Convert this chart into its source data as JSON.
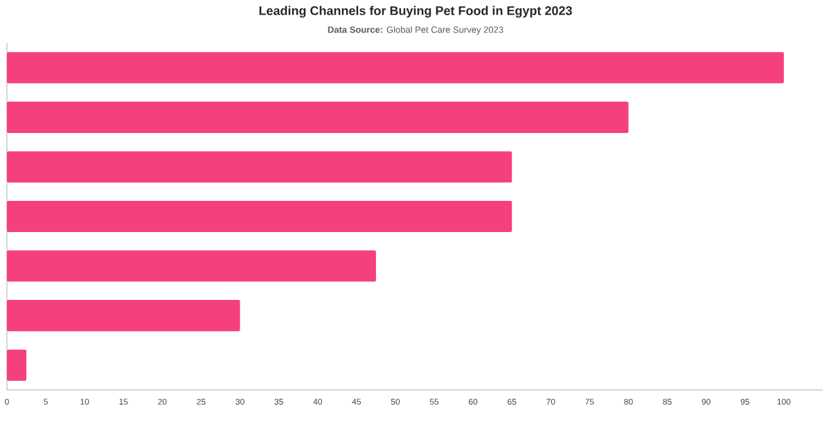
{
  "chart_data": {
    "type": "bar",
    "orientation": "horizontal",
    "title": "Leading Channels for Buying Pet Food in Egypt 2023",
    "subtitle": "**Data Source:** Global Pet Care Survey 2023",
    "categories": [
      null,
      null,
      null,
      null,
      null,
      null,
      null
    ],
    "values": [
      100,
      80,
      65,
      65,
      47.5,
      30,
      2.5
    ],
    "color": "#f5407c",
    "xlim": [
      0,
      105
    ],
    "xticks": [
      0,
      5,
      10,
      15,
      20,
      25,
      30,
      35,
      40,
      45,
      50,
      55,
      60,
      65,
      70,
      75,
      80,
      85,
      90,
      95,
      100
    ],
    "grid": false
  }
}
